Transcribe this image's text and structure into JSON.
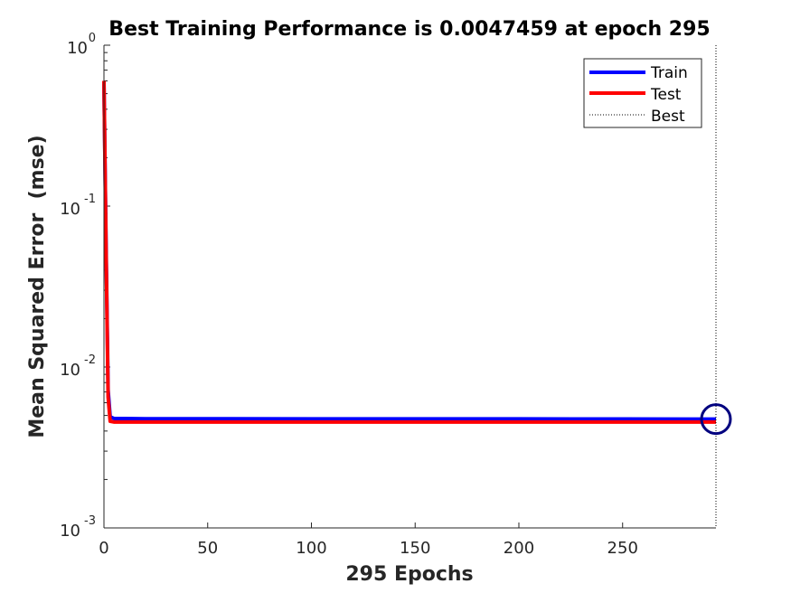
{
  "chart_data": {
    "type": "line",
    "title": "Best Training Performance is 0.0047459 at epoch 295",
    "xlabel": "295 Epochs",
    "ylabel": "Mean Squared Error  (mse)",
    "xlim": [
      0,
      295
    ],
    "ylim": [
      0.001,
      1
    ],
    "yscale": "log",
    "x_ticks": [
      "0",
      "50",
      "100",
      "150",
      "200",
      "250"
    ],
    "y_ticks": [
      {
        "base": "10",
        "exp": "0"
      },
      {
        "base": "10",
        "exp": "-1"
      },
      {
        "base": "10",
        "exp": "-2"
      },
      {
        "base": "10",
        "exp": "-3"
      }
    ],
    "grid": false,
    "legend": {
      "position": "top-right",
      "entries": [
        "Train",
        "Test",
        "Best"
      ]
    },
    "series": [
      {
        "name": "Train",
        "color": "#0000ff",
        "x": [
          0,
          1,
          2,
          3,
          5,
          10,
          20,
          50,
          100,
          150,
          200,
          250,
          295
        ],
        "y": [
          0.58,
          0.06,
          0.0072,
          0.0049,
          0.00478,
          0.00478,
          0.00477,
          0.00477,
          0.00476,
          0.00476,
          0.00476,
          0.00475,
          0.0047459
        ]
      },
      {
        "name": "Test",
        "color": "#ff0000",
        "x": [
          0,
          1,
          2,
          3,
          5,
          10,
          20,
          50,
          100,
          150,
          200,
          250,
          295
        ],
        "y": [
          0.6,
          0.055,
          0.0065,
          0.0046,
          0.00455,
          0.00455,
          0.00455,
          0.00455,
          0.00455,
          0.00455,
          0.00455,
          0.00455,
          0.00455
        ]
      }
    ],
    "best": {
      "name": "Best",
      "epoch": 295,
      "value": 0.0047459,
      "line_style": "dotted",
      "marker_color": "#00007f"
    }
  }
}
